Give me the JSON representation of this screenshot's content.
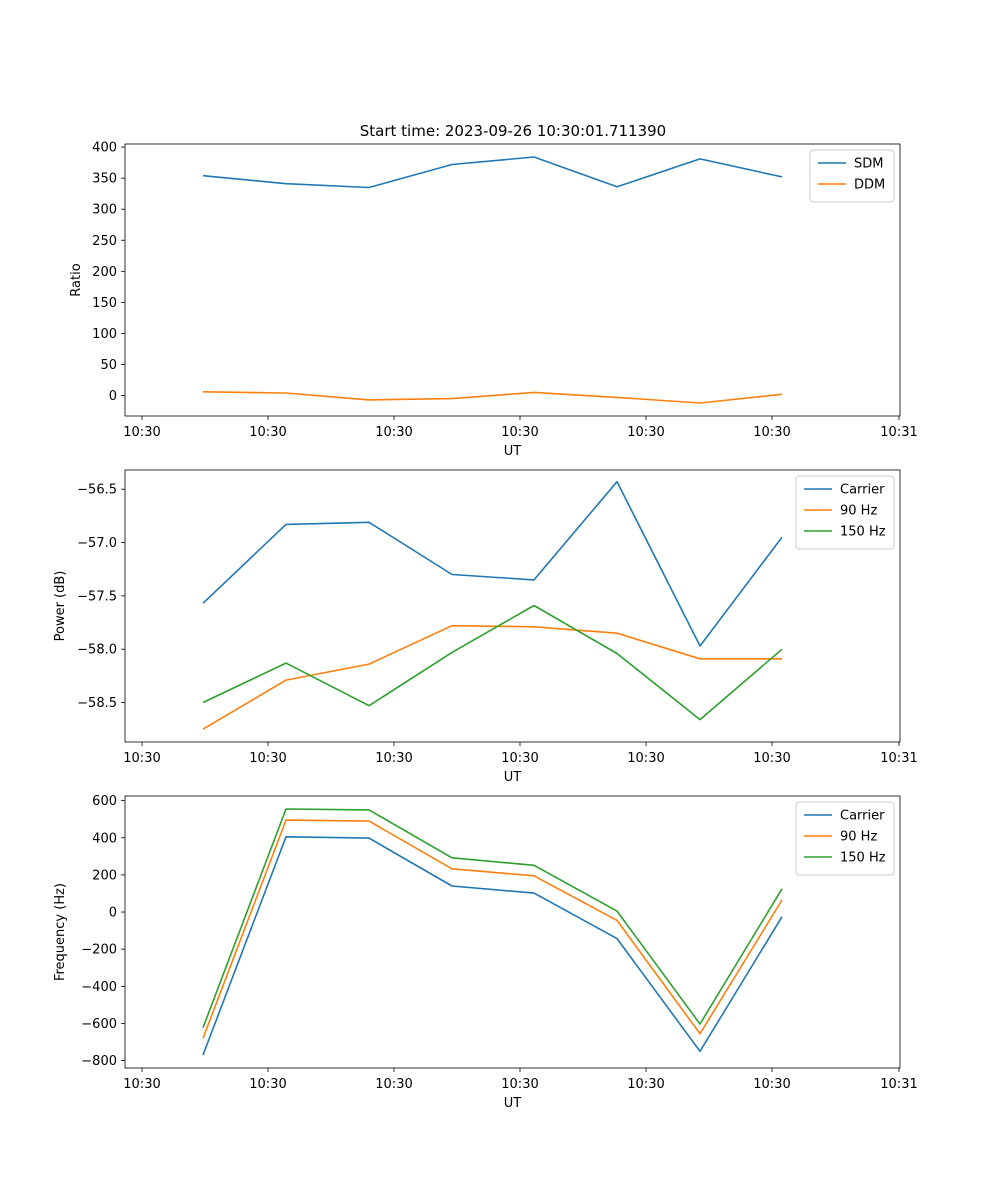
{
  "figure_title": "Start time: 2023-09-26 10:30:01.711390",
  "colors": {
    "blue": "#1f77b4",
    "orange": "#ff7f0e",
    "green": "#2ca02c"
  },
  "chart_data": [
    {
      "type": "line",
      "ylabel": "Ratio",
      "xlabel": "UT",
      "xlim": [
        0,
        1
      ],
      "ylim": [
        -33,
        405
      ],
      "x_ticks": [
        0.0,
        0.1667,
        0.3333,
        0.5,
        0.6667,
        0.8333,
        1.0
      ],
      "x_tick_labels": [
        "10:30",
        "10:30",
        "10:30",
        "10:30",
        "10:30",
        "10:30",
        "10:31"
      ],
      "y_ticks": [
        0,
        50,
        100,
        150,
        200,
        250,
        300,
        350,
        400
      ],
      "y_tick_labels": [
        "0",
        "50",
        "100",
        "150",
        "200",
        "250",
        "300",
        "350",
        "400"
      ],
      "x": [
        0.0819,
        0.1913,
        0.3004,
        0.4098,
        0.5189,
        0.628,
        0.7375,
        0.8466
      ],
      "legend_loc": "top-right",
      "series": [
        {
          "name": "SDM",
          "color": "#1f77b4",
          "values": [
            354,
            341,
            335,
            372,
            384,
            336,
            381,
            352
          ]
        },
        {
          "name": "DDM",
          "color": "#ff7f0e",
          "values": [
            6,
            4,
            -7,
            -5,
            5,
            -3,
            -12,
            2
          ]
        }
      ]
    },
    {
      "type": "line",
      "ylabel": "Power (dB)",
      "xlabel": "UT",
      "xlim": [
        0,
        1
      ],
      "ylim": [
        -58.87,
        -56.32
      ],
      "x_ticks": [
        0.0,
        0.1667,
        0.3333,
        0.5,
        0.6667,
        0.8333,
        1.0
      ],
      "x_tick_labels": [
        "10:30",
        "10:30",
        "10:30",
        "10:30",
        "10:30",
        "10:30",
        "10:31"
      ],
      "y_ticks": [
        -58.5,
        -58.0,
        -57.5,
        -57.0,
        -56.5
      ],
      "y_tick_labels": [
        "−58.5",
        "−58.0",
        "−57.5",
        "−57.0",
        "−56.5"
      ],
      "x": [
        0.0819,
        0.1913,
        0.3004,
        0.4098,
        0.5189,
        0.628,
        0.7375,
        0.8466
      ],
      "legend_loc": "top-right",
      "series": [
        {
          "name": "Carrier",
          "color": "#1f77b4",
          "values": [
            -57.57,
            -56.83,
            -56.81,
            -57.3,
            -57.35,
            -56.43,
            -57.97,
            -56.95
          ]
        },
        {
          "name": "90 Hz",
          "color": "#ff7f0e",
          "values": [
            -58.75,
            -58.29,
            -58.14,
            -57.78,
            -57.79,
            -57.85,
            -58.09,
            -58.09
          ]
        },
        {
          "name": "150 Hz",
          "color": "#2ca02c",
          "values": [
            -58.5,
            -58.13,
            -58.53,
            -58.03,
            -57.59,
            -58.04,
            -58.66,
            -58.0
          ]
        }
      ]
    },
    {
      "type": "line",
      "ylabel": "Frequency (Hz)",
      "xlabel": "UT",
      "xlim": [
        0,
        1
      ],
      "ylim": [
        -840,
        625
      ],
      "x_ticks": [
        0.0,
        0.1667,
        0.3333,
        0.5,
        0.6667,
        0.8333,
        1.0
      ],
      "x_tick_labels": [
        "10:30",
        "10:30",
        "10:30",
        "10:30",
        "10:30",
        "10:30",
        "10:31"
      ],
      "y_ticks": [
        -800,
        -600,
        -400,
        -200,
        0,
        200,
        400,
        600
      ],
      "y_tick_labels": [
        "−800",
        "−600",
        "−400",
        "−200",
        "0",
        "200",
        "400",
        "600"
      ],
      "x": [
        0.0819,
        0.1913,
        0.3004,
        0.4098,
        0.5189,
        0.628,
        0.7375,
        0.8466
      ],
      "legend_loc": "top-right",
      "series": [
        {
          "name": "Carrier",
          "color": "#1f77b4",
          "values": [
            -770,
            405,
            398,
            140,
            102,
            -143,
            -750,
            -25
          ]
        },
        {
          "name": "90 Hz",
          "color": "#ff7f0e",
          "values": [
            -680,
            495,
            490,
            233,
            195,
            -45,
            -655,
            65
          ]
        },
        {
          "name": "150 Hz",
          "color": "#2ca02c",
          "values": [
            -623,
            555,
            550,
            292,
            252,
            5,
            -603,
            125
          ]
        }
      ]
    }
  ]
}
